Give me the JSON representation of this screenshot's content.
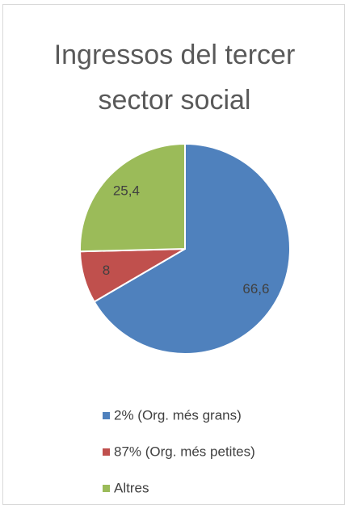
{
  "chart_data": {
    "type": "pie",
    "title": "Ingressos del tercer sector social",
    "categories": [
      "2% (Org. més grans)",
      "87% (Org. més petites)",
      "Altres"
    ],
    "values": [
      66.6,
      8,
      25.4
    ],
    "value_labels": [
      "66,6",
      "8",
      "25,4"
    ],
    "colors": [
      "#4f81bd",
      "#c0504d",
      "#9bbb59"
    ],
    "legend": "bottom"
  }
}
